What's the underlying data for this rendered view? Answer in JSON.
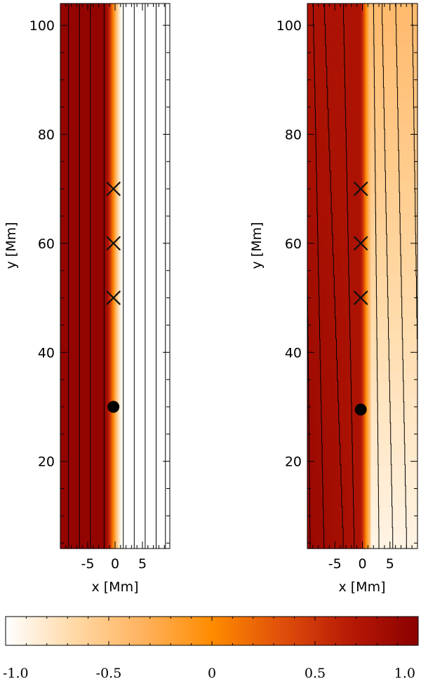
{
  "chart_data": {
    "panels": [
      {
        "type": "heatmap",
        "name": "left-panel",
        "xlabel": "x [Mm]",
        "ylabel": "y [Mm]",
        "xlim": [
          -10,
          10
        ],
        "ylim": [
          4,
          104
        ],
        "xticks": [
          -5,
          0,
          5
        ],
        "yticks": [
          20,
          40,
          60,
          80,
          100
        ],
        "field": {
          "model": "uniform-jump",
          "left_value": 0.93,
          "right_value": -1.0,
          "transition_x": [
            -2.0,
            1.5
          ],
          "tilt_per_mm": 0
        },
        "contours_x": [
          -8.5,
          -6.5,
          -4.5,
          -2,
          1.5,
          3.5,
          5.5,
          7.5,
          9.2
        ],
        "cross_markers": [
          {
            "x": -0.3,
            "y": 70
          },
          {
            "x": -0.3,
            "y": 60
          },
          {
            "x": -0.3,
            "y": 50
          }
        ],
        "dot_markers": [
          {
            "x": -0.3,
            "y": 30
          }
        ]
      },
      {
        "type": "heatmap",
        "name": "right-panel",
        "xlabel": "x [Mm]",
        "ylabel": "y [Mm]",
        "xlim": [
          -10,
          10
        ],
        "ylim": [
          4,
          104
        ],
        "xticks": [
          -5,
          0,
          5
        ],
        "yticks": [
          20,
          40,
          60,
          80,
          100
        ],
        "field": {
          "model": "tilted-gradient",
          "left_value": 0.75,
          "right_value": -0.45,
          "transition_x": [
            -0.5,
            1.5
          ],
          "gradient_left": 0.15,
          "gradient_right": 0.5
        },
        "contours": [
          {
            "x_bottom": -9.5,
            "x_top": -10.5
          },
          {
            "x_bottom": -7,
            "x_top": -9
          },
          {
            "x_bottom": -3.5,
            "x_top": -7
          },
          {
            "x_bottom": -1.5,
            "x_top": -3.5
          },
          {
            "x_bottom": 3.0,
            "x_top": 2.0
          },
          {
            "x_bottom": 5.5,
            "x_top": 3.5
          },
          {
            "x_bottom": 8.0,
            "x_top": 6.0
          },
          {
            "x_bottom": 10.5,
            "x_top": 9.0
          }
        ],
        "cross_markers": [
          {
            "x": -0.3,
            "y": 70
          },
          {
            "x": -0.3,
            "y": 60
          },
          {
            "x": -0.3,
            "y": 50
          }
        ],
        "dot_markers": [
          {
            "x": -0.3,
            "y": 29.5
          }
        ]
      }
    ],
    "colorbar": {
      "range": [
        -1.0,
        1.0
      ],
      "tick_labels": [
        "-1.0",
        "-0.5",
        "0",
        "0.5",
        "1.0"
      ],
      "tick_values": [
        -1.0,
        -0.5,
        0,
        0.5,
        1.0
      ],
      "colormap": [
        "#ffffff",
        "#ffd9a6",
        "#ffb25e",
        "#ff8c00",
        "#e0500a",
        "#b81a05",
        "#8b0000"
      ]
    }
  }
}
